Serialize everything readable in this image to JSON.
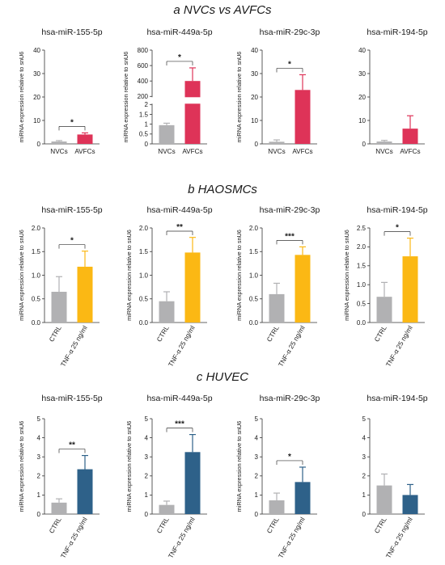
{
  "sections": [
    {
      "label": "a NVCs vs AVFCs"
    },
    {
      "label": "b HAOSMCs"
    },
    {
      "label": "c HUVEC"
    }
  ],
  "chart_data": [
    {
      "type": "bar",
      "section": "a NVCs vs AVFCs",
      "title": "hsa-miR-155-5p",
      "ylabel": "miRNA expression relative to snU6",
      "categories": [
        "NVCs",
        "AVFCs"
      ],
      "values": [
        1.0,
        4.0
      ],
      "errors": [
        0.4,
        0.7
      ],
      "ylim": [
        0,
        40
      ],
      "yticks": [
        0,
        10,
        20,
        30,
        40
      ],
      "colors": [
        "#b1b1b3",
        "#de3358"
      ],
      "significance": "*"
    },
    {
      "type": "bar",
      "section": "a NVCs vs AVFCs",
      "title": "hsa-miR-449a-5p",
      "ylabel": "miRNA expression relative to snU6",
      "categories": [
        "NVCs",
        "AVFCs"
      ],
      "values": [
        0.95,
        400
      ],
      "errors": [
        0.1,
        170
      ],
      "ylim": [
        0,
        800
      ],
      "yticks": [
        0,
        0.5,
        1.0,
        1.5,
        2.0,
        200,
        400,
        600,
        800
      ],
      "broken_axis": [
        2,
        200
      ],
      "colors": [
        "#b1b1b3",
        "#de3358"
      ],
      "significance": "*"
    },
    {
      "type": "bar",
      "section": "a NVCs vs AVFCs",
      "title": "hsa-miR-29c-3p",
      "ylabel": "miRNA expression relative to snU6",
      "categories": [
        "NVCs",
        "AVFCs"
      ],
      "values": [
        0.9,
        23
      ],
      "errors": [
        0.8,
        6.5
      ],
      "ylim": [
        0,
        40
      ],
      "yticks": [
        0,
        10,
        20,
        30,
        40
      ],
      "colors": [
        "#b1b1b3",
        "#de3358"
      ],
      "significance": "*"
    },
    {
      "type": "bar",
      "section": "a NVCs vs AVFCs",
      "title": "hsa-miR-194-5p",
      "ylabel": "",
      "categories": [
        "NVCs",
        "AVFCs"
      ],
      "values": [
        1.0,
        6.5
      ],
      "errors": [
        0.5,
        5.5
      ],
      "ylim": [
        0,
        40
      ],
      "yticks": [
        0,
        10,
        20,
        30,
        40
      ],
      "colors": [
        "#b1b1b3",
        "#de3358"
      ],
      "significance": ""
    },
    {
      "type": "bar",
      "section": "b HAOSMCs",
      "title": "hsa-miR-155-5p",
      "ylabel": "miRNA expression relative to snU6",
      "categories": [
        "CTRL",
        "TNF-α 25 ng/ml"
      ],
      "values": [
        0.65,
        1.18
      ],
      "errors": [
        0.32,
        0.33
      ],
      "ylim": [
        0,
        2.0
      ],
      "yticks": [
        0.0,
        0.5,
        1.0,
        1.5,
        2.0
      ],
      "colors": [
        "#b1b1b3",
        "#fbb814"
      ],
      "significance": "*"
    },
    {
      "type": "bar",
      "section": "b HAOSMCs",
      "title": "hsa-miR-449a-5p",
      "ylabel": "miRNA expression relative to snU6",
      "categories": [
        "CTRL",
        "TNF-α 25 ng/ml"
      ],
      "values": [
        0.45,
        1.48
      ],
      "errors": [
        0.2,
        0.32
      ],
      "ylim": [
        0,
        2.0
      ],
      "yticks": [
        0.0,
        0.5,
        1.0,
        1.5,
        2.0
      ],
      "colors": [
        "#b1b1b3",
        "#fbb814"
      ],
      "significance": "**"
    },
    {
      "type": "bar",
      "section": "b HAOSMCs",
      "title": "hsa-miR-29c-3p",
      "ylabel": "miRNA expression relative to snU6",
      "categories": [
        "CTRL",
        "TNF-α 25 ng/ml"
      ],
      "values": [
        0.6,
        1.43
      ],
      "errors": [
        0.23,
        0.17
      ],
      "ylim": [
        0,
        2.0
      ],
      "yticks": [
        0.0,
        0.5,
        1.0,
        1.5,
        2.0
      ],
      "colors": [
        "#b1b1b3",
        "#fbb814"
      ],
      "significance": "***"
    },
    {
      "type": "bar",
      "section": "b HAOSMCs",
      "title": "hsa-miR-194-5p",
      "ylabel": "miRNA expression relative to snU6",
      "categories": [
        "CTRL",
        "TNF-α 25 ng/ml"
      ],
      "values": [
        0.68,
        1.75
      ],
      "errors": [
        0.38,
        0.48
      ],
      "ylim": [
        0,
        2.5
      ],
      "yticks": [
        0.0,
        0.5,
        1.0,
        1.5,
        2.0,
        2.5
      ],
      "colors": [
        "#b1b1b3",
        "#fbb814"
      ],
      "significance": "*"
    },
    {
      "type": "bar",
      "section": "c HUVEC",
      "title": "hsa-miR-155-5p",
      "ylabel": "miRNA expression relative to snU6",
      "categories": [
        "CTRL",
        "TNF-α 25 ng/ml"
      ],
      "values": [
        0.6,
        2.35
      ],
      "errors": [
        0.2,
        0.72
      ],
      "ylim": [
        0,
        5
      ],
      "yticks": [
        0,
        1,
        2,
        3,
        4,
        5
      ],
      "colors": [
        "#b1b1b3",
        "#2e6189"
      ],
      "significance": "**"
    },
    {
      "type": "bar",
      "section": "c HUVEC",
      "title": "hsa-miR-449a-5p",
      "ylabel": "miRNA expression relative to snU6",
      "categories": [
        "CTRL",
        "TNF-α 25 ng/ml"
      ],
      "values": [
        0.48,
        3.25
      ],
      "errors": [
        0.2,
        0.92
      ],
      "ylim": [
        0,
        5
      ],
      "yticks": [
        0,
        1,
        2,
        3,
        4,
        5
      ],
      "colors": [
        "#b1b1b3",
        "#2e6189"
      ],
      "significance": "***"
    },
    {
      "type": "bar",
      "section": "c HUVEC",
      "title": "hsa-miR-29c-3p",
      "ylabel": "miRNA expression relative to snU6",
      "categories": [
        "CTRL",
        "TNF-α 25 ng/ml"
      ],
      "values": [
        0.72,
        1.68
      ],
      "errors": [
        0.38,
        0.78
      ],
      "ylim": [
        0,
        5
      ],
      "yticks": [
        0,
        1,
        2,
        3,
        4,
        5
      ],
      "colors": [
        "#b1b1b3",
        "#2e6189"
      ],
      "significance": "*"
    },
    {
      "type": "bar",
      "section": "c HUVEC",
      "title": "hsa-miR-194-5p",
      "ylabel": "",
      "categories": [
        "CTRL",
        "TNF-α 25 ng/ml"
      ],
      "values": [
        1.5,
        1.0
      ],
      "errors": [
        0.6,
        0.55
      ],
      "ylim": [
        0,
        5
      ],
      "yticks": [
        0,
        1,
        2,
        3,
        4,
        5
      ],
      "colors": [
        "#b1b1b3",
        "#2e6189"
      ],
      "significance": ""
    }
  ]
}
